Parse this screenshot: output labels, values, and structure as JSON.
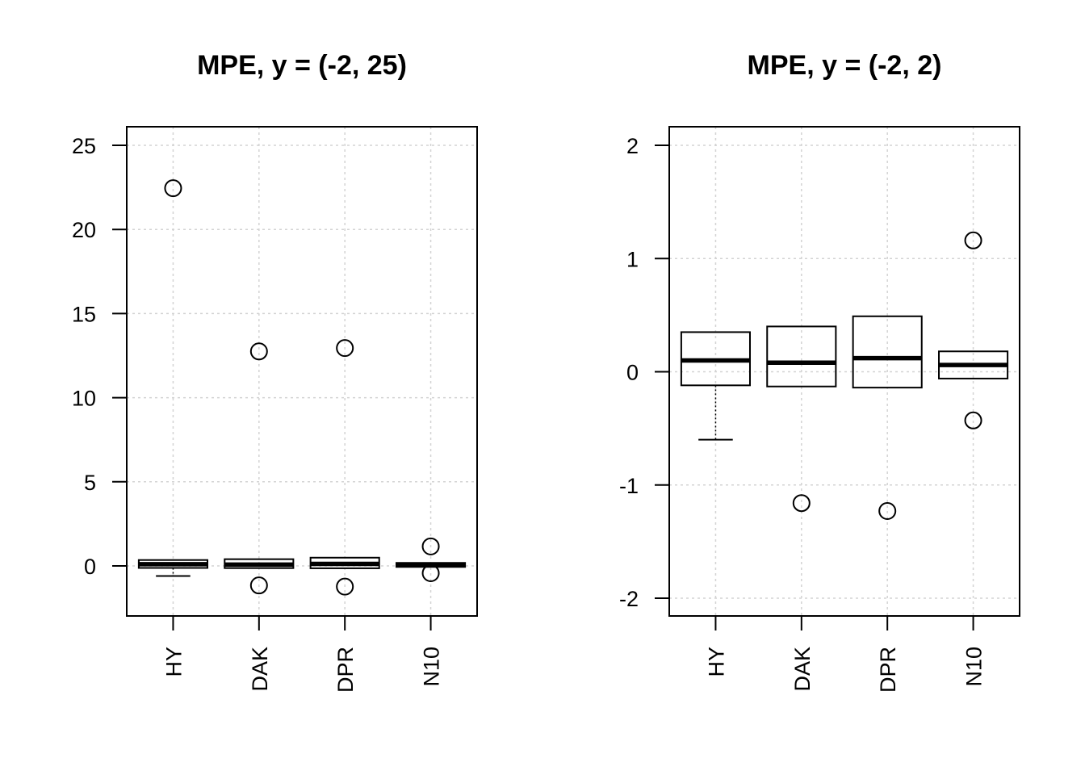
{
  "chart_data": [
    {
      "type": "boxplot",
      "title": "MPE, y = (-2, 25)",
      "categories": [
        "HY",
        "DAK",
        "DPR",
        "N10"
      ],
      "ylim": [
        -2,
        25
      ],
      "yticks": [
        0,
        5,
        10,
        15,
        20,
        25
      ],
      "ytick_labels": [
        "0",
        "5",
        "10",
        "15",
        "20",
        "25"
      ],
      "grid": true,
      "boxes": [
        {
          "category": "HY",
          "q1": -0.12,
          "median": 0.1,
          "q3": 0.35,
          "whisker_low": -0.6,
          "whisker_high": 0.35,
          "outliers": [
            22.45
          ]
        },
        {
          "category": "DAK",
          "q1": -0.13,
          "median": 0.08,
          "q3": 0.4,
          "whisker_low": -0.13,
          "whisker_high": 0.4,
          "outliers": [
            12.75,
            -1.16
          ]
        },
        {
          "category": "DPR",
          "q1": -0.14,
          "median": 0.12,
          "q3": 0.49,
          "whisker_low": -0.14,
          "whisker_high": 0.49,
          "outliers": [
            12.95,
            -1.23
          ]
        },
        {
          "category": "N10",
          "q1": -0.06,
          "median": 0.06,
          "q3": 0.18,
          "whisker_low": -0.06,
          "whisker_high": 0.18,
          "outliers": [
            1.16,
            -0.43
          ]
        }
      ]
    },
    {
      "type": "boxplot",
      "title": "MPE, y = (-2, 2)",
      "categories": [
        "HY",
        "DAK",
        "DPR",
        "N10"
      ],
      "ylim": [
        -2,
        2
      ],
      "yticks": [
        -2,
        -1,
        0,
        1,
        2
      ],
      "ytick_labels": [
        "-2",
        "-1",
        "0",
        "1",
        "2"
      ],
      "grid": true,
      "boxes": [
        {
          "category": "HY",
          "q1": -0.12,
          "median": 0.1,
          "q3": 0.35,
          "whisker_low": -0.6,
          "whisker_high": 0.35,
          "outliers": []
        },
        {
          "category": "DAK",
          "q1": -0.13,
          "median": 0.08,
          "q3": 0.4,
          "whisker_low": -0.13,
          "whisker_high": 0.4,
          "outliers": [
            -1.16
          ]
        },
        {
          "category": "DPR",
          "q1": -0.14,
          "median": 0.12,
          "q3": 0.49,
          "whisker_low": -0.14,
          "whisker_high": 0.49,
          "outliers": [
            -1.23
          ]
        },
        {
          "category": "N10",
          "q1": -0.06,
          "median": 0.06,
          "q3": 0.18,
          "whisker_low": -0.06,
          "whisker_high": 0.18,
          "outliers": [
            1.16,
            -0.43
          ]
        }
      ]
    }
  ]
}
